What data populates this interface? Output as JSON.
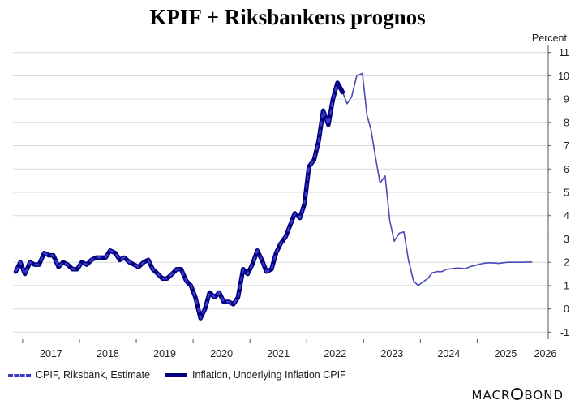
{
  "chart_data": {
    "type": "line",
    "title": "KPIF + Riksbankens prognos",
    "unit_label": "Percent",
    "xlim": [
      2016.83,
      2026.25
    ],
    "ylim": [
      -1.3,
      11.3
    ],
    "yticks": [
      -1,
      0,
      1,
      2,
      3,
      4,
      5,
      6,
      7,
      8,
      9,
      10,
      11
    ],
    "xtick_labels": [
      {
        "x": 2017.5,
        "label": "2017"
      },
      {
        "x": 2018.5,
        "label": "2018"
      },
      {
        "x": 2019.5,
        "label": "2019"
      },
      {
        "x": 2020.5,
        "label": "2020"
      },
      {
        "x": 2021.5,
        "label": "2021"
      },
      {
        "x": 2022.5,
        "label": "2022"
      },
      {
        "x": 2023.5,
        "label": "2023"
      },
      {
        "x": 2024.5,
        "label": "2024"
      },
      {
        "x": 2025.5,
        "label": "2025"
      },
      {
        "x": 2026.2,
        "label": "2026"
      }
    ],
    "grid": true,
    "legend_position": "bottom-left",
    "series": [
      {
        "name": "CPIF, Riksbank, Estimate",
        "color": "#3b3bc8",
        "style": "dashed",
        "x": [
          2016.88,
          2016.96,
          2017.04,
          2017.13,
          2017.21,
          2017.29,
          2017.38,
          2017.46,
          2017.54,
          2017.63,
          2017.71,
          2017.79,
          2017.88,
          2017.96,
          2018.04,
          2018.13,
          2018.21,
          2018.29,
          2018.38,
          2018.46,
          2018.54,
          2018.63,
          2018.71,
          2018.79,
          2018.88,
          2018.96,
          2019.04,
          2019.13,
          2019.21,
          2019.29,
          2019.38,
          2019.46,
          2019.54,
          2019.63,
          2019.71,
          2019.79,
          2019.88,
          2019.96,
          2020.04,
          2020.13,
          2020.21,
          2020.29,
          2020.38,
          2020.46,
          2020.54,
          2020.63,
          2020.71,
          2020.79,
          2020.88,
          2020.96,
          2021.04,
          2021.13,
          2021.21,
          2021.29,
          2021.38,
          2021.46,
          2021.54,
          2021.63,
          2021.71,
          2021.79,
          2021.88,
          2021.96,
          2022.04,
          2022.13,
          2022.21,
          2022.29,
          2022.38,
          2022.46,
          2022.54
        ],
        "values": [
          1.6,
          2.0,
          1.5,
          2.0,
          1.9,
          1.9,
          2.4,
          2.3,
          2.3,
          1.8,
          2.0,
          1.9,
          1.7,
          1.7,
          2.0,
          1.9,
          2.1,
          2.2,
          2.2,
          2.2,
          2.5,
          2.4,
          2.1,
          2.2,
          2.0,
          1.9,
          1.8,
          2.0,
          2.1,
          1.7,
          1.5,
          1.3,
          1.3,
          1.5,
          1.7,
          1.7,
          1.2,
          1.0,
          0.5,
          -0.4,
          0.0,
          0.7,
          0.5,
          0.7,
          0.3,
          0.3,
          0.2,
          0.5,
          1.7,
          1.5,
          1.9,
          2.5,
          2.1,
          1.6,
          1.7,
          2.4,
          2.8,
          3.1,
          3.6,
          4.1,
          3.9,
          4.5,
          6.1,
          6.4,
          7.2,
          8.5,
          7.9,
          9.0,
          9.7
        ]
      },
      {
        "name": "Inflation, Underlying Inflation CPIF",
        "color": "#000080",
        "style": "solid",
        "x": [
          2016.88,
          2016.96,
          2017.04,
          2017.13,
          2017.21,
          2017.29,
          2017.38,
          2017.46,
          2017.54,
          2017.63,
          2017.71,
          2017.79,
          2017.88,
          2017.96,
          2018.04,
          2018.13,
          2018.21,
          2018.29,
          2018.38,
          2018.46,
          2018.54,
          2018.63,
          2018.71,
          2018.79,
          2018.88,
          2018.96,
          2019.04,
          2019.13,
          2019.21,
          2019.29,
          2019.38,
          2019.46,
          2019.54,
          2019.63,
          2019.71,
          2019.79,
          2019.88,
          2019.96,
          2020.04,
          2020.13,
          2020.21,
          2020.29,
          2020.38,
          2020.46,
          2020.54,
          2020.63,
          2020.71,
          2020.79,
          2020.88,
          2020.96,
          2021.04,
          2021.13,
          2021.21,
          2021.29,
          2021.38,
          2021.46,
          2021.54,
          2021.63,
          2021.71,
          2021.79,
          2021.88,
          2021.96,
          2022.04,
          2022.13,
          2022.21,
          2022.29,
          2022.38,
          2022.46,
          2022.54,
          2022.63
        ],
        "values": [
          1.6,
          2.0,
          1.5,
          2.0,
          1.9,
          1.9,
          2.4,
          2.3,
          2.3,
          1.8,
          2.0,
          1.9,
          1.7,
          1.7,
          2.0,
          1.9,
          2.1,
          2.2,
          2.2,
          2.2,
          2.5,
          2.4,
          2.1,
          2.2,
          2.0,
          1.9,
          1.8,
          2.0,
          2.1,
          1.7,
          1.5,
          1.3,
          1.3,
          1.5,
          1.7,
          1.7,
          1.2,
          1.0,
          0.5,
          -0.4,
          0.0,
          0.7,
          0.5,
          0.7,
          0.3,
          0.3,
          0.2,
          0.5,
          1.7,
          1.5,
          1.9,
          2.5,
          2.1,
          1.6,
          1.7,
          2.4,
          2.8,
          3.1,
          3.6,
          4.1,
          3.9,
          4.5,
          6.1,
          6.4,
          7.2,
          8.5,
          7.9,
          9.0,
          9.7,
          9.3
        ]
      },
      {
        "name": "",
        "color": "#4a4ab8",
        "style": "forecast",
        "x": [
          2022.54,
          2022.63,
          2022.71,
          2022.79,
          2022.88,
          2022.98,
          2023.06,
          2023.13,
          2023.21,
          2023.29,
          2023.38,
          2023.46,
          2023.54,
          2023.63,
          2023.71,
          2023.79,
          2023.88,
          2023.96,
          2024.04,
          2024.13,
          2024.21,
          2024.29,
          2024.38,
          2024.46,
          2024.54,
          2024.63,
          2024.71,
          2024.79,
          2024.88,
          2024.96,
          2025.04,
          2025.13,
          2025.21,
          2025.29,
          2025.38,
          2025.46,
          2025.54,
          2025.63,
          2025.71,
          2025.79,
          2025.88,
          2025.96
        ],
        "values": [
          9.7,
          9.3,
          8.8,
          9.1,
          10.0,
          10.1,
          8.3,
          7.7,
          6.5,
          5.4,
          5.7,
          3.8,
          2.9,
          3.25,
          3.3,
          2.1,
          1.2,
          1.0,
          1.15,
          1.3,
          1.55,
          1.6,
          1.6,
          1.7,
          1.72,
          1.75,
          1.75,
          1.72,
          1.82,
          1.86,
          1.92,
          1.96,
          1.98,
          1.97,
          1.95,
          1.98,
          2.0,
          2.0,
          2.0,
          2.0,
          2.01,
          2.01
        ]
      }
    ]
  },
  "legend": {
    "items": [
      {
        "label": "CPIF, Riksbank, Estimate"
      },
      {
        "label": "Inflation, Underlying Inflation CPIF"
      }
    ]
  },
  "branding": {
    "text_before": "MACR",
    "text_after": "BOND"
  }
}
